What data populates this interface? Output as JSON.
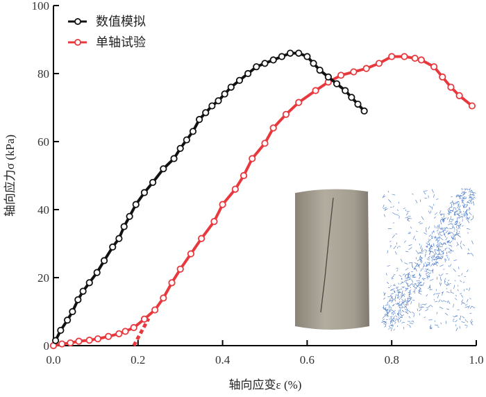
{
  "chart_data": {
    "type": "line",
    "xlabel": "轴向应变ε (%)",
    "ylabel": "轴向应力σ (kPa)",
    "xlim": [
      0,
      1.0
    ],
    "ylim": [
      0,
      100
    ],
    "xticks": [
      "0.0",
      "0.2",
      "0.4",
      "0.6",
      "0.8",
      "1.0"
    ],
    "yticks": [
      "0",
      "20",
      "40",
      "60",
      "80",
      "100"
    ],
    "grid": false,
    "legend_position": "top-left",
    "series": [
      {
        "name": "数值模拟",
        "color": "#111111",
        "x": [
          0.005,
          0.017,
          0.033,
          0.045,
          0.058,
          0.07,
          0.085,
          0.103,
          0.12,
          0.14,
          0.155,
          0.167,
          0.18,
          0.195,
          0.215,
          0.235,
          0.26,
          0.285,
          0.3,
          0.315,
          0.33,
          0.345,
          0.36,
          0.375,
          0.39,
          0.405,
          0.42,
          0.44,
          0.46,
          0.48,
          0.5,
          0.52,
          0.54,
          0.56,
          0.58,
          0.6,
          0.615,
          0.63,
          0.65,
          0.67,
          0.69,
          0.705,
          0.72,
          0.735
        ],
        "y": [
          1.5,
          4.5,
          7.5,
          10,
          13.5,
          16,
          18.5,
          21.5,
          25,
          29,
          31.5,
          35,
          38,
          41.5,
          45,
          48,
          52,
          55,
          58,
          60.5,
          63,
          66.5,
          68.5,
          70.5,
          72,
          74,
          76,
          78,
          80,
          82,
          83,
          84,
          85,
          86,
          86,
          85,
          83,
          81,
          79,
          77,
          75,
          73,
          71,
          69
        ]
      },
      {
        "name": "单轴试验",
        "color": "#e8383d",
        "x": [
          0,
          0.02,
          0.04,
          0.06,
          0.085,
          0.105,
          0.13,
          0.155,
          0.17,
          0.19,
          0.215,
          0.24,
          0.26,
          0.28,
          0.3,
          0.325,
          0.35,
          0.38,
          0.4,
          0.43,
          0.45,
          0.47,
          0.5,
          0.52,
          0.55,
          0.58,
          0.62,
          0.65,
          0.68,
          0.71,
          0.74,
          0.77,
          0.8,
          0.83,
          0.855,
          0.87,
          0.9,
          0.92,
          0.94,
          0.96,
          0.99
        ],
        "y": [
          0,
          0.5,
          0.8,
          1.3,
          1.6,
          2,
          2.7,
          3.5,
          4.2,
          5.3,
          7.8,
          10.5,
          14,
          18.5,
          22.5,
          27,
          31.5,
          36.5,
          41.5,
          46,
          50,
          55,
          59.5,
          64,
          68,
          71.5,
          75,
          77.5,
          79.5,
          80.5,
          81.5,
          83,
          85,
          85,
          84.5,
          84,
          82,
          79,
          76,
          73.5,
          70.5
        ]
      }
    ],
    "annotations": [
      {
        "type": "dashed-tangent",
        "color": "#e8383d",
        "x": [
          0.19,
          0.225
        ],
        "y": [
          0,
          8
        ]
      }
    ]
  }
}
